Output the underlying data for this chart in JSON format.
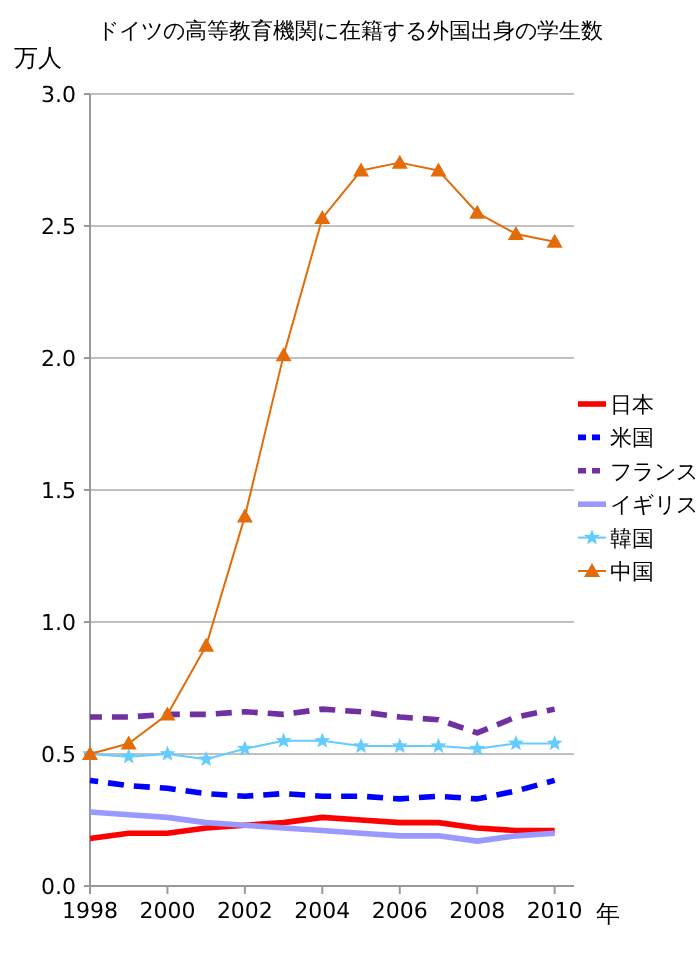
{
  "chart_data": {
    "type": "line",
    "title": "ドイツの高等教育機関に在籍する外国出身の学生数",
    "ylabel": "万人",
    "xlabel": "年",
    "x": [
      1998,
      1999,
      2000,
      2001,
      2002,
      2003,
      2004,
      2005,
      2006,
      2007,
      2008,
      2009,
      2010
    ],
    "xlim": [
      1998,
      2010.5
    ],
    "xticks": [
      1998,
      2000,
      2002,
      2004,
      2006,
      2008,
      2010
    ],
    "ylim": [
      0,
      3
    ],
    "yticks": [
      {
        "value": 0,
        "label": "0.0"
      },
      {
        "value": 0.5,
        "label": "0.5"
      },
      {
        "value": 1,
        "label": "1.0"
      },
      {
        "value": 1.5,
        "label": "1.5"
      },
      {
        "value": 2,
        "label": "2.0"
      },
      {
        "value": 2.5,
        "label": "2.5"
      },
      {
        "value": 3,
        "label": "3.0"
      }
    ],
    "grid": "y",
    "legend": "right",
    "series": [
      {
        "name": "日本",
        "color": "#ff0000",
        "line_style": "solid",
        "marker": "none",
        "values": [
          0.18,
          0.2,
          0.2,
          0.22,
          0.23,
          0.24,
          0.26,
          0.25,
          0.24,
          0.24,
          0.22,
          0.21,
          0.21
        ]
      },
      {
        "name": "米国",
        "color": "#0000ff",
        "line_style": "dashed",
        "marker": "none",
        "values": [
          0.4,
          0.38,
          0.37,
          0.35,
          0.34,
          0.35,
          0.34,
          0.34,
          0.33,
          0.34,
          0.33,
          0.36,
          0.4
        ]
      },
      {
        "name": "フランス",
        "color": "#7030a0",
        "line_style": "dashed",
        "marker": "none",
        "values": [
          0.64,
          0.64,
          0.65,
          0.65,
          0.66,
          0.65,
          0.67,
          0.66,
          0.64,
          0.63,
          0.58,
          0.64,
          0.67
        ]
      },
      {
        "name": "イギリス",
        "color": "#9999ff",
        "line_style": "solid",
        "marker": "none",
        "values": [
          0.28,
          0.27,
          0.26,
          0.24,
          0.23,
          0.22,
          0.21,
          0.2,
          0.19,
          0.19,
          0.17,
          0.19,
          0.2
        ]
      },
      {
        "name": "韓国",
        "color": "#66ccff",
        "line_style": "solid",
        "marker": "star",
        "values": [
          0.5,
          0.49,
          0.5,
          0.48,
          0.52,
          0.55,
          0.55,
          0.53,
          0.53,
          0.53,
          0.52,
          0.54,
          0.54
        ]
      },
      {
        "name": "中国",
        "color": "#e36c09",
        "line_style": "solid",
        "marker": "triangle",
        "values": [
          0.5,
          0.54,
          0.65,
          0.91,
          1.4,
          2.01,
          2.53,
          2.71,
          2.74,
          2.71,
          2.55,
          2.47,
          2.44
        ]
      }
    ]
  }
}
